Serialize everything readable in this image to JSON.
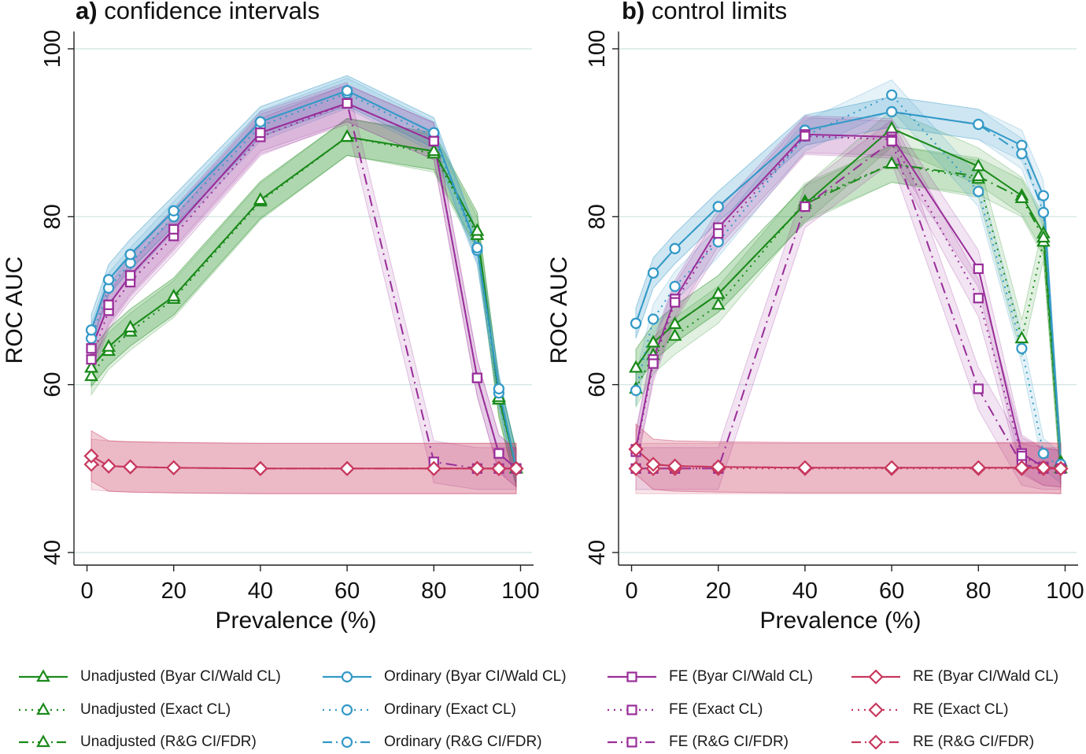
{
  "chart_data": [
    {
      "type": "line",
      "panel_letter": "a)",
      "title": "confidence intervals",
      "xlabel": "Prevalence (%)",
      "ylabel": "ROC AUC",
      "xlim": [
        -3,
        103
      ],
      "ylim": [
        38.5,
        103
      ],
      "xticks": [
        0,
        20,
        40,
        60,
        80,
        100
      ],
      "yticks": [
        40,
        60,
        80,
        100
      ],
      "grid": true,
      "series": [
        {
          "name": "Unadjusted (Byar CI/Wald CL)",
          "group": "Unadjusted",
          "x": [
            1,
            5,
            10,
            20,
            40,
            60,
            80,
            90,
            95,
            99
          ],
          "y": [
            62,
            64.5,
            66.8,
            70.5,
            82,
            89.5,
            87.8,
            78.3,
            58.5,
            50
          ],
          "band": 2.2
        },
        {
          "name": "Unadjusted (Exact CL)",
          "group": "Unadjusted",
          "x": [
            1,
            5,
            10,
            20,
            40,
            60,
            80,
            90,
            95,
            99
          ],
          "y": [
            61,
            64,
            66.3,
            70.2,
            81.8,
            89.5,
            87.5,
            77.8,
            58.2,
            50
          ],
          "band": 2.2
        },
        {
          "name": "Unadjusted (R&G CI/FDR)",
          "group": "Unadjusted",
          "x": [
            1,
            5,
            10,
            20,
            40,
            60,
            80,
            90,
            95,
            99
          ],
          "y": [
            62,
            64.5,
            66.8,
            70.5,
            82,
            89.5,
            87.8,
            78.3,
            58.5,
            50
          ],
          "band": 2.2
        },
        {
          "name": "Ordinary (Byar CI/Wald CL)",
          "group": "Ordinary",
          "x": [
            1,
            5,
            10,
            20,
            40,
            60,
            80,
            90,
            95,
            99
          ],
          "y": [
            66.5,
            72.5,
            75.5,
            80.7,
            91.3,
            95,
            90,
            76.3,
            59.5,
            50
          ],
          "band": 1.8
        },
        {
          "name": "Ordinary (Exact CL)",
          "group": "Ordinary",
          "x": [
            1,
            5,
            10,
            20,
            40,
            60,
            80,
            90,
            95,
            99
          ],
          "y": [
            65.5,
            71.5,
            74.5,
            80,
            90.8,
            94.7,
            89.5,
            76,
            59,
            50
          ],
          "band": 1.8
        },
        {
          "name": "Ordinary (R&G CI/FDR)",
          "group": "Ordinary",
          "x": [
            1,
            5,
            10,
            20,
            40,
            60,
            80,
            90,
            95,
            99
          ],
          "y": [
            66.5,
            72.5,
            75.5,
            80.7,
            91.3,
            95,
            90,
            76.3,
            59.5,
            50
          ],
          "band": 1.8
        },
        {
          "name": "FE (Byar CI/Wald CL)",
          "group": "FE",
          "x": [
            1,
            5,
            10,
            20,
            40,
            60,
            80,
            90,
            95,
            99
          ],
          "y": [
            64.3,
            69.5,
            73,
            78.5,
            90,
            93.5,
            89,
            60.8,
            51.8,
            50
          ],
          "band": 2.2
        },
        {
          "name": "FE (Exact CL)",
          "group": "FE",
          "x": [
            1,
            5,
            10,
            20,
            40,
            60,
            80,
            90,
            95,
            99
          ],
          "y": [
            63,
            68.8,
            72.2,
            77.7,
            89.5,
            93.5,
            89,
            60.8,
            51.8,
            50
          ],
          "band": 2.2
        },
        {
          "name": "FE (R&G CI/FDR)",
          "group": "FE",
          "x": [
            1,
            5,
            10,
            20,
            40,
            60,
            80,
            90,
            95,
            99
          ],
          "y": [
            64.3,
            69.5,
            73,
            78.5,
            90,
            93.5,
            50.8,
            50,
            50,
            50
          ],
          "band": 2.5
        },
        {
          "name": "RE (Byar CI/Wald CL)",
          "group": "RE",
          "x": [
            1,
            5,
            10,
            20,
            40,
            60,
            80,
            90,
            95,
            99
          ],
          "y": [
            51.5,
            50.3,
            50.2,
            50.1,
            50,
            50,
            50,
            50,
            50,
            50
          ],
          "band": 3
        },
        {
          "name": "RE (Exact CL)",
          "group": "RE",
          "x": [
            1,
            5,
            10,
            20,
            40,
            60,
            80,
            90,
            95,
            99
          ],
          "y": [
            50.5,
            50.3,
            50.2,
            50.1,
            50,
            50,
            50,
            50,
            50,
            50
          ],
          "band": 3
        },
        {
          "name": "RE (R&G CI/FDR)",
          "group": "RE",
          "x": [
            1,
            5,
            10,
            20,
            40,
            60,
            80,
            90,
            95,
            99
          ],
          "y": [
            51.5,
            50.3,
            50.2,
            50.1,
            50,
            50,
            50,
            50,
            50,
            50
          ],
          "band": 3
        }
      ]
    },
    {
      "type": "line",
      "panel_letter": "b)",
      "title": "control limits",
      "xlabel": "Prevalence (%)",
      "ylabel": "ROC AUC",
      "xlim": [
        -3,
        103
      ],
      "ylim": [
        38.5,
        103
      ],
      "xticks": [
        0,
        20,
        40,
        60,
        80,
        100
      ],
      "yticks": [
        40,
        60,
        80,
        100
      ],
      "grid": true,
      "series": [
        {
          "name": "Unadjusted (Byar CI/Wald CL)",
          "group": "Unadjusted",
          "x": [
            1,
            5,
            10,
            20,
            40,
            60,
            80,
            90,
            95,
            99
          ],
          "y": [
            62,
            65,
            67.2,
            70.8,
            81.5,
            90.5,
            86,
            82.5,
            78,
            50.8
          ],
          "band": 2.2
        },
        {
          "name": "Unadjusted (Exact CL)",
          "group": "Unadjusted",
          "x": [
            1,
            5,
            10,
            20,
            40,
            60,
            80,
            90,
            95,
            99
          ],
          "y": [
            59.5,
            63.5,
            65.8,
            69.5,
            81.8,
            86.3,
            84.5,
            65.5,
            77,
            50
          ],
          "band": 2.2
        },
        {
          "name": "Unadjusted (R&G CI/FDR)",
          "group": "Unadjusted",
          "x": [
            1,
            5,
            10,
            20,
            40,
            60,
            80,
            90,
            95,
            99
          ],
          "y": [
            62,
            65,
            67.2,
            70.8,
            81.5,
            86.3,
            84.8,
            82.2,
            77.5,
            50.5
          ],
          "band": 2.2
        },
        {
          "name": "Ordinary (Byar CI/Wald CL)",
          "group": "Ordinary",
          "x": [
            1,
            5,
            10,
            20,
            40,
            60,
            80,
            90,
            95,
            99
          ],
          "y": [
            67.3,
            73.3,
            76.2,
            81.2,
            90.3,
            92.5,
            91,
            88.5,
            82.5,
            50.5
          ],
          "band": 1.8
        },
        {
          "name": "Ordinary (Exact CL)",
          "group": "Ordinary",
          "x": [
            1,
            5,
            10,
            20,
            40,
            60,
            80,
            90,
            95,
            99
          ],
          "y": [
            59.3,
            67.8,
            71.7,
            77,
            89.6,
            94.5,
            83,
            64.3,
            51.8,
            50
          ],
          "band": 1.8
        },
        {
          "name": "Ordinary (R&G CI/FDR)",
          "group": "Ordinary",
          "x": [
            1,
            5,
            10,
            20,
            40,
            60,
            80,
            90,
            95,
            99
          ],
          "y": [
            67.3,
            73.3,
            76.2,
            81.2,
            90.3,
            92.5,
            91,
            87.5,
            80.5,
            50.5
          ],
          "band": 1.8
        },
        {
          "name": "FE (Byar CI/Wald CL)",
          "group": "FE",
          "x": [
            1,
            5,
            10,
            20,
            40,
            60,
            80,
            90,
            95,
            99
          ],
          "y": [
            52.3,
            63,
            70.2,
            78.7,
            89.8,
            89.5,
            73.8,
            51.8,
            50.2,
            50
          ],
          "band": 2.2
        },
        {
          "name": "FE (Exact CL)",
          "group": "FE",
          "x": [
            1,
            5,
            10,
            20,
            40,
            60,
            80,
            90,
            95,
            99
          ],
          "y": [
            52,
            62.5,
            69.8,
            78,
            89.6,
            89.2,
            70.3,
            51.5,
            50.2,
            50
          ],
          "band": 2.2
        },
        {
          "name": "FE (R&G CI/FDR)",
          "group": "FE",
          "x": [
            1,
            5,
            10,
            20,
            40,
            60,
            80,
            90,
            95,
            99
          ],
          "y": [
            50,
            50,
            50,
            50,
            81.2,
            89,
            59.5,
            50.5,
            50,
            50
          ],
          "band": 2.5
        },
        {
          "name": "RE (Byar CI/Wald CL)",
          "group": "RE",
          "x": [
            1,
            5,
            10,
            20,
            40,
            60,
            80,
            90,
            95,
            99
          ],
          "y": [
            52.3,
            50.5,
            50.3,
            50.2,
            50.1,
            50.1,
            50.1,
            50.1,
            50.1,
            50
          ],
          "band": 3
        },
        {
          "name": "RE (Exact CL)",
          "group": "RE",
          "x": [
            1,
            5,
            10,
            20,
            40,
            60,
            80,
            90,
            95,
            99
          ],
          "y": [
            50,
            50,
            50,
            50,
            50,
            50,
            50,
            50,
            50,
            50
          ],
          "band": 3
        },
        {
          "name": "RE (R&G CI/FDR)",
          "group": "RE",
          "x": [
            1,
            5,
            10,
            20,
            40,
            60,
            80,
            90,
            95,
            99
          ],
          "y": [
            52.3,
            50.5,
            50.3,
            50.2,
            50.1,
            50.1,
            50.1,
            50.1,
            50.1,
            50
          ],
          "band": 3
        }
      ]
    }
  ],
  "styles": {
    "colors": {
      "Unadjusted": "#1a8a1a",
      "Ordinary": "#3399c7",
      "FE": "#992d99",
      "RE": "#c7385e",
      "grid": "#d6e8e6",
      "axis": "#222222"
    },
    "markers": {
      "Unadjusted": "triangle",
      "Ordinary": "circle",
      "FE": "square",
      "RE": "diamond"
    },
    "dashes": {
      "Byar CI/Wald CL": "solid",
      "Exact CL": "dotted",
      "R&G CI/FDR": "dash-dot"
    }
  },
  "legend": [
    {
      "label": "Unadjusted (Byar CI/Wald CL)",
      "group": "Unadjusted",
      "dash": "solid"
    },
    {
      "label": "Unadjusted (Exact CL)",
      "group": "Unadjusted",
      "dash": "dotted"
    },
    {
      "label": "Unadjusted (R&G CI/FDR)",
      "group": "Unadjusted",
      "dash": "dash-dot"
    },
    {
      "label": "Ordinary (Byar CI/Wald CL)",
      "group": "Ordinary",
      "dash": "solid"
    },
    {
      "label": "Ordinary (Exact CL)",
      "group": "Ordinary",
      "dash": "dotted"
    },
    {
      "label": "Ordinary (R&G CI/FDR)",
      "group": "Ordinary",
      "dash": "dash-dot"
    },
    {
      "label": "FE (Byar CI/Wald CL)",
      "group": "FE",
      "dash": "solid"
    },
    {
      "label": "FE (Exact CL)",
      "group": "FE",
      "dash": "dotted"
    },
    {
      "label": "FE (R&G CI/FDR)",
      "group": "FE",
      "dash": "dash-dot"
    },
    {
      "label": "RE (Byar CI/Wald CL)",
      "group": "RE",
      "dash": "solid"
    },
    {
      "label": "RE (Exact CL)",
      "group": "RE",
      "dash": "dotted"
    },
    {
      "label": "RE (R&G CI/FDR)",
      "group": "RE",
      "dash": "dash-dot"
    }
  ]
}
